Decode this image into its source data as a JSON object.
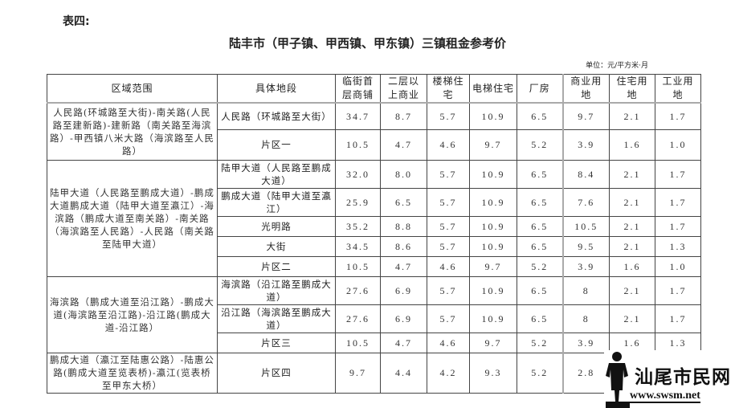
{
  "table_label": "表四:",
  "title": "陆丰市（甲子镇、甲西镇、甲东镇）三镇租金参考价",
  "unit": "单位：元/平方米·月",
  "headers": [
    "区域范围",
    "具体地段",
    "临街首层商铺",
    "二层以上商业",
    "楼梯住宅",
    "电梯住宅",
    "厂房",
    "商业用地",
    "住宅用地",
    "工业用地"
  ],
  "groups": [
    {
      "area": "人民路(环城路至大街)-南关路(人民路至建新路)-建新路（南关路至海滨路）-甲西镇八米大路（海滨路至人民路）",
      "rows": [
        {
          "segment": "人民路（环城路至大街）",
          "values": [
            "34.7",
            "8.7",
            "5.7",
            "10.9",
            "6.5",
            "9.7",
            "2.1",
            "1.7"
          ]
        },
        {
          "segment": "片区一",
          "values": [
            "10.5",
            "4.7",
            "4.6",
            "9.7",
            "5.2",
            "3.9",
            "1.6",
            "1.0"
          ]
        }
      ]
    },
    {
      "area": "陆甲大道（人民路至鹏成大道）-鹏成大道鹏成大道（陆甲大道至瀛江）-海滨路（鹏成大道至南关路）-南关路（海滨路至人民路）-人民路（南关路至陆甲大道）",
      "rows": [
        {
          "segment": "陆甲大道（人民路至鹏成大道）",
          "values": [
            "32.0",
            "8.0",
            "5.7",
            "10.9",
            "6.5",
            "8.4",
            "2.1",
            "1.7"
          ]
        },
        {
          "segment": "鹏成大道（陆甲大道至瀛江）",
          "values": [
            "25.9",
            "6.5",
            "5.7",
            "10.9",
            "6.5",
            "7.6",
            "2.1",
            "1.7"
          ]
        },
        {
          "segment": "光明路",
          "values": [
            "35.2",
            "8.8",
            "5.7",
            "10.9",
            "6.5",
            "10.5",
            "2.1",
            "1.7"
          ]
        },
        {
          "segment": "大街",
          "values": [
            "34.5",
            "8.6",
            "5.7",
            "10.9",
            "6.5",
            "9.5",
            "2.1",
            "1.3"
          ]
        },
        {
          "segment": "片区二",
          "values": [
            "10.5",
            "4.7",
            "4.6",
            "9.7",
            "5.2",
            "3.9",
            "1.6",
            "1.0"
          ]
        }
      ]
    },
    {
      "area": "海滨路（鹏成大道至沿江路）-鹏成大道(海滨路至沿江路)-沿江路(鹏成大道-沿江路）",
      "rows": [
        {
          "segment": "海滨路（沿江路至鹏成大道）",
          "values": [
            "27.6",
            "6.9",
            "5.7",
            "10.9",
            "6.5",
            "8",
            "2.1",
            "1.7"
          ]
        },
        {
          "segment": "沿江路（海滨路至鹏成大道）",
          "values": [
            "27.6",
            "6.9",
            "5.7",
            "10.9",
            "6.5",
            "8",
            "2.1",
            "1.7"
          ]
        },
        {
          "segment": "片区三",
          "values": [
            "10.5",
            "4.7",
            "4.6",
            "9.7",
            "5.2",
            "3.9",
            "1.6",
            "1.3"
          ]
        }
      ]
    },
    {
      "area": "鹏成大道（瀛江至陆惠公路）-陆惠公路(鹏成大道至览表桥)-瀛江(览表桥至甲东大桥）",
      "rows": [
        {
          "segment": "片区四",
          "values": [
            "9.7",
            "4.4",
            "4.2",
            "9.3",
            "5.2",
            "2.8",
            "",
            ""
          ]
        }
      ]
    }
  ],
  "watermark": {
    "name": "汕尾市民网",
    "url": "www.swsm.net"
  }
}
